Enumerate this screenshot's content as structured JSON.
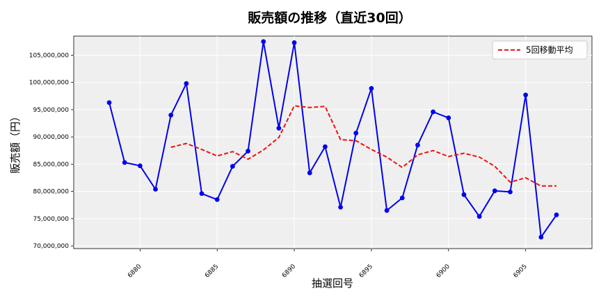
{
  "chart_data": {
    "type": "line",
    "title": "販売額の推移（直近30回）",
    "xlabel": "抽選回号",
    "ylabel": "販売額（円）",
    "x": [
      6878,
      6879,
      6880,
      6881,
      6882,
      6883,
      6884,
      6885,
      6886,
      6887,
      6888,
      6889,
      6890,
      6891,
      6892,
      6893,
      6894,
      6895,
      6896,
      6897,
      6898,
      6899,
      6900,
      6901,
      6902,
      6903,
      6904,
      6905,
      6906,
      6907
    ],
    "xlim": [
      6875.7,
      6909.3
    ],
    "ylim": [
      69500000,
      108500000
    ],
    "xticks": [
      6880,
      6885,
      6890,
      6895,
      6900,
      6905
    ],
    "xtick_labels": [
      "6880",
      "6885",
      "6890",
      "6895",
      "6900",
      "6905"
    ],
    "yticks": [
      70000000,
      75000000,
      80000000,
      85000000,
      90000000,
      95000000,
      100000000,
      105000000
    ],
    "ytick_labels": [
      "70,000,000",
      "75,000,000",
      "80,000,000",
      "85,000,000",
      "90,000,000",
      "95,000,000",
      "100,000,000",
      "105,000,000"
    ],
    "grid": true,
    "legend_position": "top-right",
    "series": [
      {
        "role": "sales",
        "color": "#0000ee",
        "style": "solid-with-markers",
        "values": [
          96300000,
          85300000,
          84700000,
          80400000,
          94000000,
          99800000,
          79600000,
          78500000,
          84600000,
          87400000,
          107500000,
          91600000,
          107300000,
          83400000,
          88200000,
          77100000,
          90700000,
          98900000,
          76500000,
          78800000,
          88500000,
          94600000,
          93500000,
          79400000,
          75400000,
          80100000,
          79900000,
          97700000,
          71600000,
          75700000
        ]
      },
      {
        "name": "5回移動平均",
        "role": "moving-average",
        "color": "#ee1111",
        "style": "dashed",
        "x": [
          6882,
          6883,
          6884,
          6885,
          6886,
          6887,
          6888,
          6889,
          6890,
          6891,
          6892,
          6893,
          6894,
          6895,
          6896,
          6897,
          6898,
          6899,
          6900,
          6901,
          6902,
          6903,
          6904,
          6905,
          6906,
          6907
        ],
        "values": [
          88100000,
          88800000,
          87700000,
          86500000,
          87300000,
          85900000,
          87600000,
          89900000,
          95700000,
          95400000,
          95600000,
          89500000,
          89300000,
          87700000,
          86300000,
          84400000,
          86700000,
          87500000,
          86400000,
          87000000,
          86300000,
          84600000,
          81700000,
          82500000,
          81000000,
          81000000
        ]
      }
    ]
  }
}
